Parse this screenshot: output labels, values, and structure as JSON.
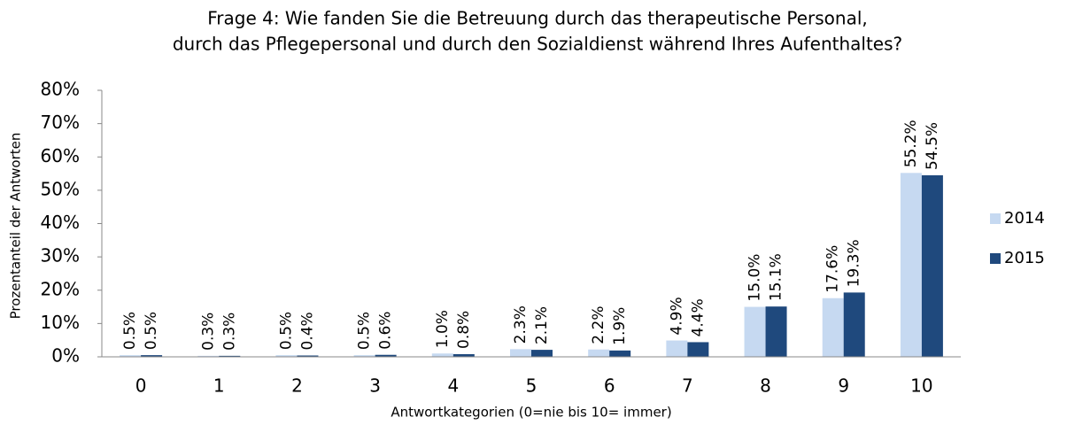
{
  "chart_data": {
    "type": "bar",
    "title": [
      "Frage 4: Wie fanden Sie die Betreuung durch das therapeutische Personal,",
      "durch das Pflegepersonal und durch den Sozialdienst während Ihres Aufenthaltes?"
    ],
    "x_label": "Antwortkategorien (0=nie bis 10= immer)",
    "y_label": "Prozentanteil der Antworten",
    "categories": [
      "0",
      "1",
      "2",
      "3",
      "4",
      "5",
      "6",
      "7",
      "8",
      "9",
      "10"
    ],
    "series": [
      {
        "name": "2014",
        "color": "#c6d9f1",
        "values": [
          0.5,
          0.3,
          0.5,
          0.5,
          1.0,
          2.3,
          2.2,
          4.9,
          15.0,
          17.6,
          55.2
        ],
        "value_labels": [
          "0.5%",
          "0.3%",
          "0.5%",
          "0.5%",
          "1.0%",
          "2.3%",
          "2.2%",
          "4.9%",
          "15.0%",
          "17.6%",
          "55.2%"
        ]
      },
      {
        "name": "2015",
        "color": "#1f497d",
        "values": [
          0.5,
          0.3,
          0.4,
          0.6,
          0.8,
          2.1,
          1.9,
          4.4,
          15.1,
          19.3,
          54.5
        ],
        "value_labels": [
          "0.5%",
          "0.3%",
          "0.4%",
          "0.6%",
          "0.8%",
          "2.1%",
          "1.9%",
          "4.4%",
          "15.1%",
          "19.3%",
          "54.5%"
        ]
      }
    ],
    "ylim": [
      0,
      80
    ],
    "yticks": [
      {
        "value": 0,
        "label": "0%"
      },
      {
        "value": 10,
        "label": "10%"
      },
      {
        "value": 20,
        "label": "20%"
      },
      {
        "value": 30,
        "label": "30%"
      },
      {
        "value": 40,
        "label": "40%"
      },
      {
        "value": 50,
        "label": "50%"
      },
      {
        "value": 60,
        "label": "60%"
      },
      {
        "value": 70,
        "label": "70%"
      },
      {
        "value": 80,
        "label": "80%"
      }
    ],
    "legend": "right"
  }
}
